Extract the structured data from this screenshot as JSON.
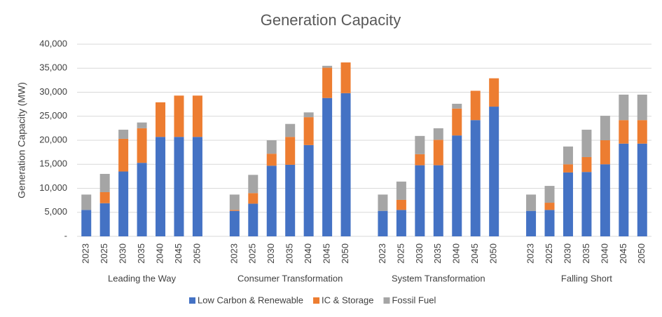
{
  "chart_data": {
    "type": "stacked_bar",
    "title": "Generation Capacity",
    "y_label": "Generation Capacity (MW)",
    "category_groups": [
      "Leading the Way",
      "Consumer Transformation",
      "System Transformation",
      "Falling Short"
    ],
    "categories": [
      "2023",
      "2025",
      "2030",
      "2035",
      "2040",
      "2045",
      "2050",
      "2023",
      "2025",
      "2030",
      "2035",
      "2040",
      "2045",
      "2050",
      "2023",
      "2025",
      "2030",
      "2035",
      "2040",
      "2045",
      "2050",
      "2023",
      "2025",
      "2030",
      "2035",
      "2040",
      "2045",
      "2050"
    ],
    "series": [
      {
        "name": "Low Carbon & Renewable",
        "color": "#4472c4",
        "values": [
          5500,
          6900,
          13500,
          15300,
          20700,
          20700,
          20700,
          5300,
          6800,
          14700,
          14900,
          19000,
          28800,
          29800,
          5300,
          5500,
          14800,
          14800,
          21000,
          24200,
          27000,
          5300,
          5500,
          13300,
          13400,
          15000,
          19300,
          19300
        ]
      },
      {
        "name": "IC & Storage",
        "color": "#ed7d31",
        "values": [
          0,
          2300,
          6800,
          7200,
          7200,
          8600,
          8600,
          200,
          2200,
          2500,
          5800,
          5800,
          6300,
          6400,
          0,
          2100,
          2300,
          5300,
          5600,
          6100,
          5900,
          0,
          1500,
          1700,
          3100,
          5000,
          4900,
          4900
        ]
      },
      {
        "name": "Fossil Fuel",
        "color": "#a5a5a5",
        "values": [
          3200,
          3800,
          1900,
          1200,
          0,
          0,
          0,
          3200,
          3800,
          2800,
          2700,
          1000,
          400,
          0,
          3400,
          3800,
          3800,
          2400,
          1000,
          0,
          0,
          3400,
          3500,
          3700,
          5700,
          5100,
          5300,
          5300
        ]
      }
    ],
    "ylim": [
      0,
      40000
    ],
    "yticks": [
      {
        "value": 0,
        "label": "-"
      },
      {
        "value": 5000,
        "label": "5,000"
      },
      {
        "value": 10000,
        "label": "10,000"
      },
      {
        "value": 15000,
        "label": "15,000"
      },
      {
        "value": 20000,
        "label": "20,000"
      },
      {
        "value": 25000,
        "label": "25,000"
      },
      {
        "value": 30000,
        "label": "30,000"
      },
      {
        "value": 35000,
        "label": "35,000"
      },
      {
        "value": 40000,
        "label": "40,000"
      }
    ],
    "grid": true
  }
}
